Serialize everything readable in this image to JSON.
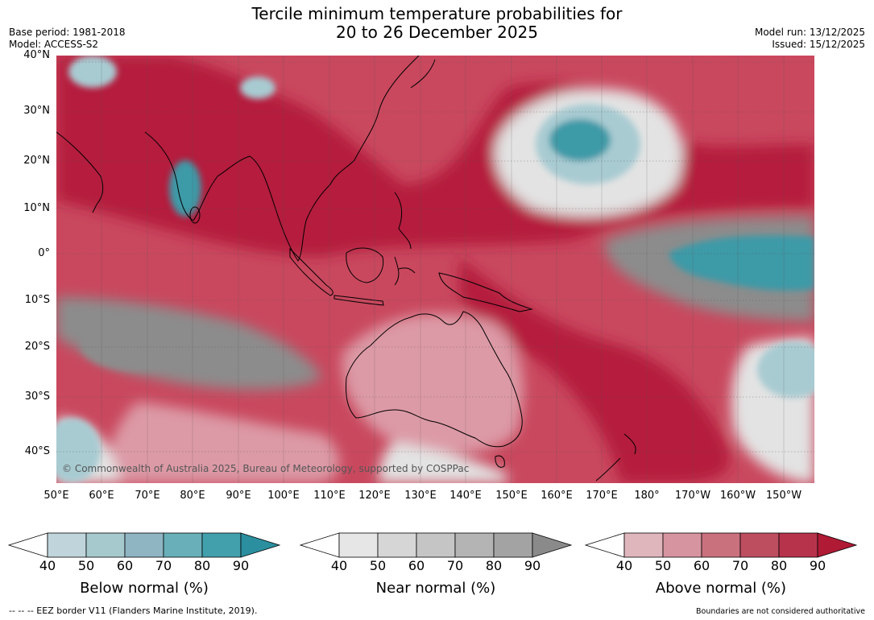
{
  "header": {
    "title_line1": "Tercile minimum temperature probabilities for",
    "title_line2": "20 to 26 December 2025",
    "base_period": "Base period: 1981-2018",
    "model": "Model: ACCESS-S2",
    "model_run": "Model run: 13/12/2025",
    "issued": "Issued: 15/12/2025"
  },
  "map": {
    "lat_labels": [
      "40°N",
      "30°N",
      "20°N",
      "10°N",
      "0°",
      "10°S",
      "20°S",
      "30°S",
      "40°S"
    ],
    "lon_labels": [
      "50°E",
      "60°E",
      "70°E",
      "80°E",
      "90°E",
      "100°E",
      "110°E",
      "120°E",
      "130°E",
      "140°E",
      "150°E",
      "160°E",
      "170°E",
      "180°",
      "170°W",
      "160°W",
      "150°W"
    ],
    "copyright": "© Commonwealth of Australia 2025, Bureau of Meteorology, supported by COSPPac",
    "colors": {
      "above_dark": "#b51e3c",
      "above_mid": "#c9485e",
      "above_light": "#dc9aa6",
      "near_light": "#e3e3e3",
      "near_dark": "#8c8c8c",
      "below_light": "#a8cbd2",
      "below_dark": "#3d9aa7",
      "land_outline": "#000000"
    }
  },
  "colorbars": {
    "tick_values": [
      "40",
      "50",
      "60",
      "70",
      "80",
      "90"
    ],
    "below": {
      "title": "Below normal (%)",
      "colors": [
        "#ffffff",
        "#bfd5db",
        "#a6c9cd",
        "#8fb5c2",
        "#69afb9",
        "#42a0ad",
        "#2b8f9f"
      ]
    },
    "near": {
      "title": "Near normal (%)",
      "colors": [
        "#ffffff",
        "#e6e6e6",
        "#d6d6d6",
        "#c5c5c5",
        "#b4b4b4",
        "#a3a3a3",
        "#8a8a8a"
      ]
    },
    "above": {
      "title": "Above normal (%)",
      "colors": [
        "#ffffff",
        "#e0b6bd",
        "#d5949f",
        "#ca717e",
        "#bd4e60",
        "#b7334b",
        "#b01a35"
      ]
    }
  },
  "footer": {
    "eez_note": "--  --  -- EEZ border V11 (Flanders Marine Institute, 2019).",
    "boundaries_note": "Boundaries are not considered authoritative"
  }
}
